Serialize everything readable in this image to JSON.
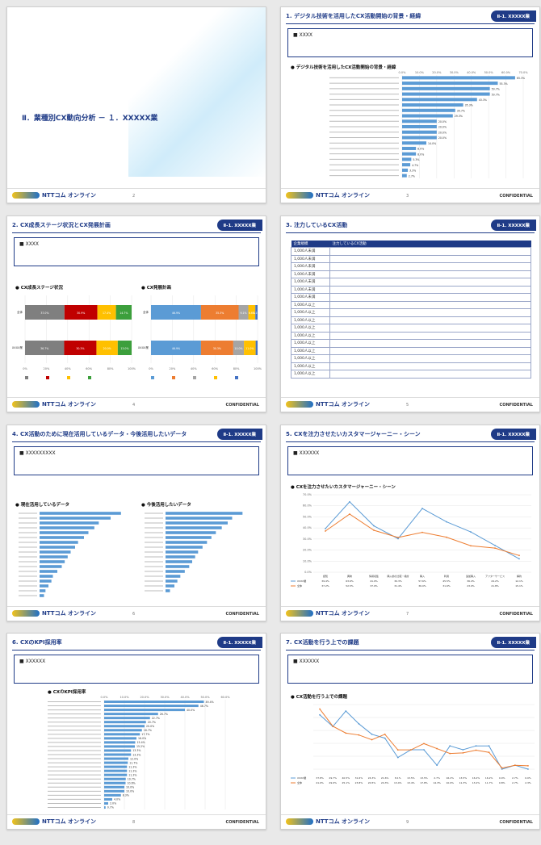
{
  "footer": {
    "logo_text": "NTTコム オンライン",
    "confidential": "CONFIDENTIAL"
  },
  "slides": [
    {
      "page": "2",
      "cover_title": "Ⅱ．業種別CX動向分析 － １．XXXXX業"
    },
    {
      "page": "3",
      "title": "1. デジタル技術を活用したCX活動開始の背景・経緯",
      "badge": "Ⅱ-1. XXXXX業",
      "note": "XXXX",
      "chart_title": "デジタル技術を活用したCX活動開始の背景・経緯",
      "chart_data": {
        "type": "bar",
        "orientation": "horizontal",
        "x_ticks": [
          "0.0%",
          "10.0%",
          "20.0%",
          "30.0%",
          "40.0%",
          "50.0%",
          "60.0%",
          "70.0%"
        ],
        "xlim": [
          0,
          70
        ],
        "values": [
          65.3,
          55.3,
          50.7,
          50.7,
          43.3,
          35.3,
          30.7,
          29.3,
          20.0,
          20.0,
          20.0,
          20.0,
          14.0,
          8.0,
          8.0,
          5.3,
          4.7,
          3.3,
          2.7
        ],
        "labels": [
          "65.3%",
          "55.3%",
          "50.7%",
          "50.7%",
          "43.3%",
          "35.3%",
          "30.7%",
          "29.3%",
          "20.0%",
          "20.0%",
          "20.0%",
          "20.0%",
          "14.0%",
          "8.0%",
          "8.0%",
          "5.3%",
          "4.7%",
          "3.3%",
          "2.7%"
        ]
      }
    },
    {
      "page": "4",
      "title": "2. CX成長ステージ状況とCX発展計画",
      "badge": "Ⅱ-1. XXXXX業",
      "note": "XXXX",
      "chart_titles": [
        "CX成長ステージ状況",
        "CX発展計画"
      ],
      "chart_data": [
        {
          "type": "bar",
          "stacked": true,
          "orientation": "horizontal",
          "categories": [
            "全体",
            "XXXX業"
          ],
          "x_ticks": [
            "0%",
            "20%",
            "40%",
            "60%",
            "80%",
            "100%"
          ],
          "segments": [
            {
              "values": [
                37.0,
                36.7
              ],
              "color": "#7f7f7f"
            },
            {
              "values": [
                30.9,
                30.3
              ],
              "color": "#c00000"
            },
            {
              "values": [
                17.4,
                20.0
              ],
              "color": "#ffc000"
            },
            {
              "values": [
                14.7,
                13.0
              ],
              "color": "#3c9f3c"
            }
          ],
          "segment_labels": [
            [
              "37.0%",
              "30.9%",
              "17.4%",
              "14.7%"
            ],
            [
              "36.7%",
              "30.3%",
              "20.0%",
              "13.0%"
            ]
          ]
        },
        {
          "type": "bar",
          "stacked": true,
          "orientation": "horizontal",
          "categories": [
            "全体",
            "XXXX業"
          ],
          "x_ticks": [
            "0%",
            "20%",
            "40%",
            "60%",
            "80%",
            "100%"
          ],
          "segments": [
            {
              "values": [
                46.9,
                46.9
              ],
              "color": "#5b9bd5"
            },
            {
              "values": [
                35.3,
                30.3
              ],
              "color": "#ed7d31"
            },
            {
              "values": [
                9.1,
                10.0
              ],
              "color": "#a5a5a5"
            },
            {
              "values": [
                6.6,
                11.0
              ],
              "color": "#ffc000"
            },
            {
              "values": [
                2.1,
                1.8
              ],
              "color": "#4472c4"
            }
          ],
          "segment_labels": [
            [
              "46.9%",
              "35.3%",
              "9.1%",
              "6.6%",
              "2.1%"
            ],
            [
              "46.9%",
              "30.3%",
              "10.0%",
              "11.0%",
              ""
            ]
          ]
        }
      ]
    },
    {
      "page": "5",
      "title": "3. 注力しているCX活動",
      "badge": "Ⅱ-1. XXXXX業",
      "table_headers": [
        "企業規模",
        "注力しているCX活動"
      ],
      "table_rows": [
        "1,000人未満",
        "1,000人未満",
        "1,000人未満",
        "1,000人未満",
        "1,000人未満",
        "1,000人未満",
        "1,000人未満",
        "1,000人以上",
        "1,000人以上",
        "1,000人以上",
        "1,000人以上",
        "1,000人以上",
        "1,000人以上",
        "1,000人以上",
        "1,000人以上",
        "1,000人以上",
        "1,000人以上"
      ]
    },
    {
      "page": "6",
      "title": "4. CX活動のために現在活用しているデータ・今後活用したいデータ",
      "badge": "Ⅱ-1. XXXXX業",
      "note": "XXXXXXXXX",
      "chart_titles": [
        "現在活用しているデータ",
        "今後活用したいデータ"
      ],
      "chart_data": [
        {
          "type": "bar",
          "orientation": "horizontal",
          "values": [
            55.0,
            48.0,
            40.0,
            37.0,
            33.0,
            30.0,
            26.0,
            24.0,
            21.0,
            19.0,
            17.0,
            15.0,
            12.0,
            9.0,
            8.0,
            6.0,
            4.0,
            3.0
          ]
        },
        {
          "type": "bar",
          "orientation": "horizontal",
          "values": [
            52.0,
            45.0,
            42.0,
            38.0,
            34.0,
            31.0,
            28.0,
            25.0,
            22.0,
            20.0,
            18.0,
            16.0,
            13.0,
            10.0,
            8.0,
            6.0,
            3.0
          ]
        }
      ]
    },
    {
      "page": "7",
      "title": "5. CXを注力させたいカスタマージャーニー・シーン",
      "badge": "Ⅱ-1. XXXXX業",
      "note": "XXXXXX",
      "chart_title": "CXを注力させたいカスタマージャーニー・シーン",
      "chart_data": {
        "type": "line",
        "y_ticks": [
          "70.0%",
          "60.0%",
          "50.0%",
          "40.0%",
          "30.0%",
          "20.0%",
          "10.0%",
          "0.0%"
        ],
        "ylim": [
          0,
          70
        ],
        "categories": [
          "認知",
          "興味",
          "情報収集",
          "購入前の比較・検討",
          "購入",
          "利用",
          "追加購入",
          "アフターサービス",
          "解約"
        ],
        "series": [
          {
            "name": "XXXX業",
            "color": "#5b9bd5",
            "values": [
              39.4,
              63.6,
              41.9,
              30.3,
              57.6,
              45.5,
              36.4,
              24.2,
              12.1
            ],
            "labels": [
              "39.4%",
              "63.6%",
              "41.9%",
              "30.3%",
              "57.6%",
              "45.5%",
              "36.4%",
              "24.2%",
              "12.1%"
            ]
          },
          {
            "name": "全体",
            "color": "#ed7d31",
            "values": [
              37.2,
              52.5,
              37.9,
              31.4,
              36.0,
              31.6,
              23.9,
              21.8,
              15.1
            ],
            "labels": [
              "37.2%",
              "52.5%",
              "37.9%",
              "31.4%",
              "36.0%",
              "31.6%",
              "23.9%",
              "21.8%",
              "15.1%"
            ]
          }
        ]
      }
    },
    {
      "page": "8",
      "title": "6. CXのKPI採用率",
      "badge": "Ⅱ-1. XXXXX業",
      "note": "XXXXXX",
      "chart_title": "CXのKPI採用率",
      "chart_data": {
        "type": "bar",
        "orientation": "horizontal",
        "x_ticks": [
          "0.0%",
          "10.0%",
          "20.0%",
          "30.0%",
          "40.0%",
          "50.0%",
          "60.0%"
        ],
        "xlim": [
          0,
          60
        ],
        "values": [
          49.4,
          46.7,
          40.0,
          26.7,
          22.7,
          20.7,
          20.0,
          18.7,
          17.7,
          16.0,
          15.4,
          15.2,
          13.3,
          13.3,
          12.0,
          11.7,
          11.3,
          11.3,
          11.3,
          10.7,
          10.6,
          10.0,
          10.0,
          8.3,
          4.0,
          2.0,
          0.7
        ],
        "labels": [
          "49.4%",
          "46.7%",
          "40.0%",
          "26.7%",
          "22.7%",
          "20.7%",
          "20.0%",
          "18.7%",
          "17.7%",
          "16.0%",
          "15.4%",
          "15.2%",
          "13.3%",
          "13.3%",
          "12.0%",
          "11.7%",
          "11.3%",
          "11.3%",
          "11.3%",
          "10.7%",
          "10.6%",
          "10.0%",
          "10.0%",
          "8.3%",
          "4.0%",
          "2.0%",
          "0.7%"
        ]
      }
    },
    {
      "page": "9",
      "title": "7. CX活動を行う上での課題",
      "badge": "Ⅱ-1. XXXXX業",
      "note": "XXXXXX",
      "chart_title": "CX活動を行う上での課題",
      "chart_data": {
        "type": "line",
        "ylim": [
          0,
          45
        ],
        "series": [
          {
            "name": "XXXX業",
            "color": "#5b9bd5",
            "values": [
              37.8,
              29.7,
              40.5,
              31.6,
              24.3,
              21.6,
              8.1,
              13.5,
              13.5,
              2.7,
              16.2,
              13.5,
              16.2,
              16.2,
              0.0,
              2.7,
              0.0
            ],
            "labels": [
              "37.8%",
              "29.7%",
              "40.5%",
              "31.6%",
              "24.3%",
              "21.6%",
              "8.1%",
              "13.5%",
              "13.5%",
              "2.7%",
              "16.2%",
              "13.5%",
              "16.2%",
              "16.2%",
              "0.0%",
              "2.7%",
              "0.0%"
            ]
          },
          {
            "name": "全体",
            "color": "#ed7d31",
            "values": [
              41.9,
              29.9,
              25.1,
              23.8,
              20.5,
              24.3,
              13.4,
              13.4,
              17.8,
              14.3,
              10.9,
              11.3,
              13.2,
              11.7,
              0.8,
              2.7,
              2.3
            ],
            "labels": [
              "41.9%",
              "29.9%",
              "25.1%",
              "23.8%",
              "20.5%",
              "24.3%",
              "13.4%",
              "13.4%",
              "17.8%",
              "14.3%",
              "10.9%",
              "11.3%",
              "13.2%",
              "11.7%",
              "0.8%",
              "2.7%",
              "2.3%"
            ]
          }
        ]
      }
    }
  ]
}
